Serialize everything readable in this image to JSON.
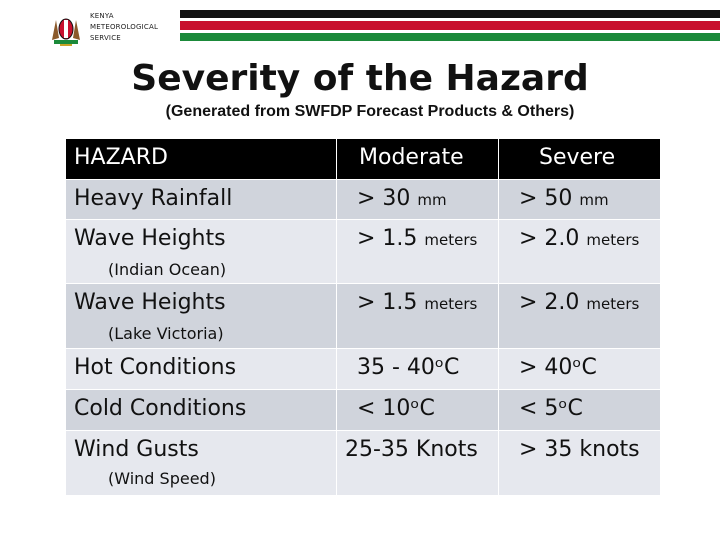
{
  "header": {
    "org_line1": "KENYA",
    "org_line2": "METEOROLOGICAL",
    "org_line3": "SERVICE",
    "flag_colors": [
      "#111111",
      "#c8102e",
      "#1b8a3a"
    ]
  },
  "title": "Severity of the Hazard",
  "subtitle": "(Generated from SWFDP Forecast Products & Others)",
  "table": {
    "headers": {
      "hazard": "HAZARD",
      "moderate": "Moderate",
      "severe": "Severe"
    },
    "rows": [
      {
        "hazard": "Heavy Rainfall",
        "note": "",
        "moderate": "> 30",
        "moderate_unit": "mm",
        "severe": "> 50",
        "severe_unit": "mm"
      },
      {
        "hazard": "Wave Heights",
        "note": "(Indian Ocean)",
        "moderate": "> 1.5",
        "moderate_unit": "meters",
        "severe": "> 2.0",
        "severe_unit": "meters"
      },
      {
        "hazard": "Wave Heights",
        "note": "(Lake Victoria)",
        "moderate": "> 1.5",
        "moderate_unit": "meters",
        "severe": "> 2.0",
        "severe_unit": "meters"
      },
      {
        "hazard": "Hot Conditions",
        "note": "",
        "moderate": "35 - 40ᵒC",
        "moderate_unit": "",
        "severe": "> 40ᵒC",
        "severe_unit": ""
      },
      {
        "hazard": "Cold Conditions",
        "note": "",
        "moderate": "< 10ᵒC",
        "moderate_unit": "",
        "severe": "< 5ᵒC",
        "severe_unit": ""
      },
      {
        "hazard": "Wind Gusts",
        "note": "(Wind Speed)",
        "moderate": "25-35 Knots",
        "moderate_unit": "",
        "severe": "> 35 knots",
        "severe_unit": ""
      }
    ]
  }
}
